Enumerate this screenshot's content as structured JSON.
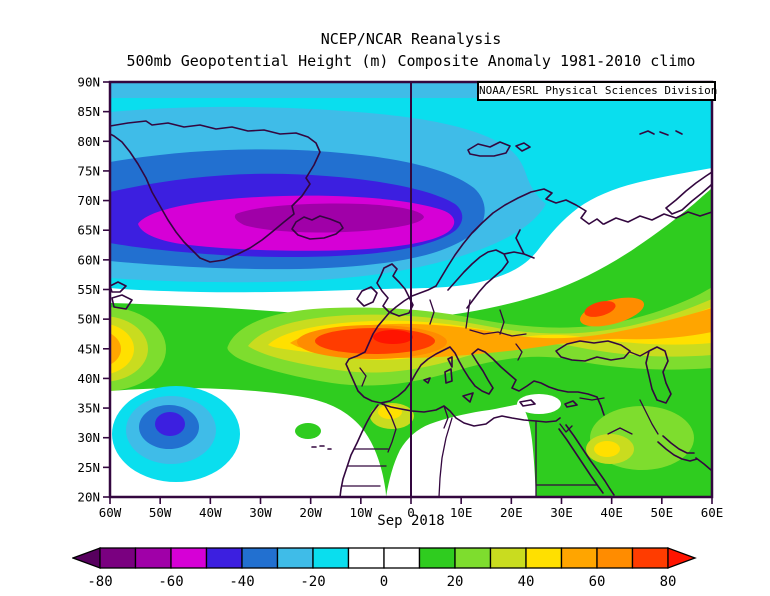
{
  "figure": {
    "title_line1": "NCEP/NCAR Reanalysis",
    "title_line2": "500mb Geopotential Height (m) Composite Anomaly 1981-2010 climo",
    "credit_box": "NOAA/ESRL Physical Sciences Division",
    "caption": "Sep 2018"
  },
  "axes": {
    "lat_ticks": [
      "90N",
      "85N",
      "80N",
      "75N",
      "70N",
      "65N",
      "60N",
      "55N",
      "50N",
      "45N",
      "40N",
      "35N",
      "30N",
      "25N",
      "20N"
    ],
    "lon_ticks": [
      "60W",
      "50W",
      "40W",
      "30W",
      "20W",
      "10W",
      "0",
      "10E",
      "20E",
      "30E",
      "40E",
      "50E",
      "60E"
    ]
  },
  "palette": {
    "frame": "#33073F",
    "coastline": "#33073F",
    "arrow_neg": "#57005E",
    "s1": "#7A0080",
    "s2": "#A000A8",
    "s3": "#D600D6",
    "s4": "#3C1FE0",
    "s5": "#2270D0",
    "s6": "#3FBCE8",
    "s7": "#0ADEEE",
    "white": "#FFFFFF",
    "s10": "#2FCC1F",
    "s11": "#7EDD2E",
    "s12": "#C9DC1F",
    "s13": "#FFE000",
    "s14": "#FFA500",
    "s15": "#FF8C00",
    "s16": "#FF3C00",
    "arrow_pos": "#FF1400"
  },
  "chart_data": {
    "type": "heatmap",
    "title": "500mb Geopotential Height (m) Composite Anomaly 1981-2010 climo",
    "dataset": "NCEP/NCAR Reanalysis",
    "variable": "500mb Geopotential Height anomaly (m)",
    "baseline": "1981-2010 climatology",
    "period": "Sep 2018",
    "credit": "NOAA/ESRL Physical Sciences Division",
    "projection": "cylindrical lat/lon",
    "domain": {
      "lon_min": "60W",
      "lon_max": "60E",
      "lat_min": "20N",
      "lat_max": "90N"
    },
    "grid": "off",
    "colorbar": {
      "orientation": "horizontal",
      "unit": "m",
      "tick_labels": [
        "-80",
        "-60",
        "-40",
        "-20",
        "0",
        "20",
        "40",
        "60",
        "80"
      ],
      "levels": [
        -80,
        -70,
        -60,
        -50,
        -40,
        -30,
        -20,
        -10,
        0,
        10,
        20,
        30,
        40,
        50,
        60,
        70,
        80
      ],
      "segment_colors": [
        "#7A0080",
        "#A000A8",
        "#D600D6",
        "#3C1FE0",
        "#2270D0",
        "#3FBCE8",
        "#0ADEEE",
        "#FFFFFF",
        "#FFFFFF",
        "#2FCC1F",
        "#7EDD2E",
        "#C9DC1F",
        "#FFE000",
        "#FFA500",
        "#FF8C00",
        "#FF3C00"
      ],
      "below_min_color": "#57005E",
      "above_max_color": "#FF1400"
    },
    "anomaly_centers": [
      {
        "sign": "negative",
        "value_range": "-70 to -60 m",
        "location": "62-67N, 35W-5E (Iceland / Norwegian Sea trough)"
      },
      {
        "sign": "negative",
        "value_range": "-50 to -40 m",
        "location": "30-32N, 45-50W (subtropical North Atlantic low)"
      },
      {
        "sign": "positive",
        "value_range": "greater than 80 m",
        "location": "47-50N, 10W-5E (western Europe ridge, core near English Channel)"
      },
      {
        "sign": "positive",
        "value_range": "60 to 80 m",
        "location": "49-53N, 32-42E (western Russia / Ukraine ridge)"
      },
      {
        "sign": "positive",
        "value_range": "60 to 80 m",
        "location": "44-46N, 60W (west edge of domain)"
      },
      {
        "sign": "neutral",
        "value_range": "-10 to 10 m",
        "location": "Sahara, Barents Sea / Scandinavia north, and 50-56N mid-Atlantic band"
      }
    ]
  }
}
